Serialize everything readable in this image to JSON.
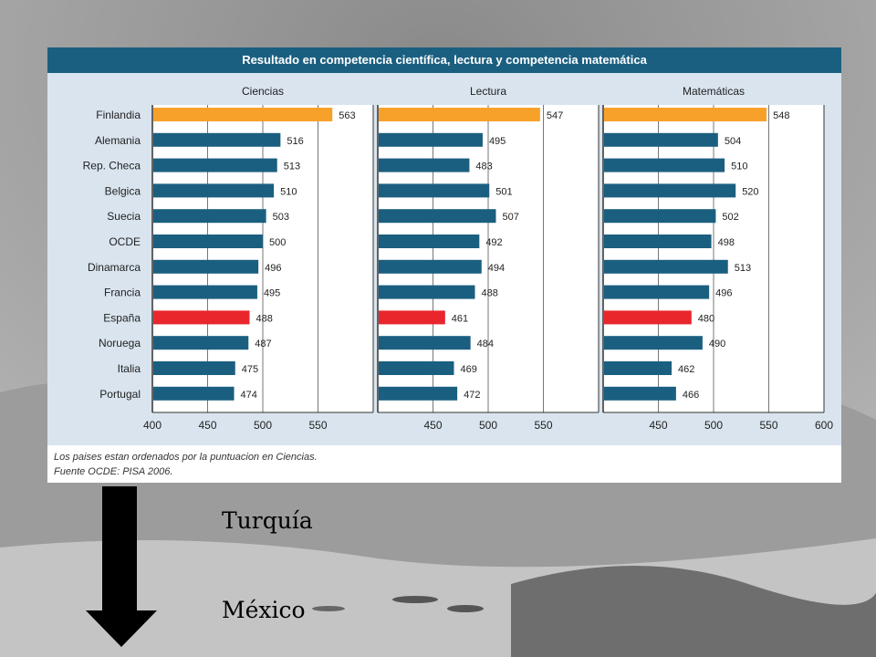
{
  "figure": {
    "title": "Resultado en competencia científica, lectura y competencia matemática",
    "notes": [
      "Los paises estan ordenados por la puntuacion en Ciencias.",
      "Fuente OCDE: PISA 2006."
    ]
  },
  "colors": {
    "default_bar": "#1b5f80",
    "highlight_top": "#f7a12b",
    "highlight_spain": "#e8262c",
    "header": "#1b5f80",
    "panel_bg": "#d9e4ee"
  },
  "chart_data": {
    "type": "bar",
    "orientation": "horizontal",
    "categories": [
      "Finlandia",
      "Alemania",
      "Rep. Checa",
      "Belgica",
      "Suecia",
      "OCDE",
      "Dinamarca",
      "Francia",
      "España",
      "Noruega",
      "Italia",
      "Portugal"
    ],
    "highlight": {
      "Finlandia": "#f7a12b",
      "España": "#e8262c"
    },
    "panels": [
      {
        "name": "Ciencias",
        "values": [
          563,
          516,
          513,
          510,
          503,
          500,
          496,
          495,
          488,
          487,
          475,
          474
        ],
        "xlim": [
          400,
          600
        ],
        "ticks": [
          400,
          450,
          500,
          550
        ]
      },
      {
        "name": "Lectura",
        "values": [
          547,
          495,
          483,
          501,
          507,
          492,
          494,
          488,
          461,
          484,
          469,
          472
        ],
        "xlim": [
          400,
          600
        ],
        "ticks": [
          450,
          500,
          550
        ]
      },
      {
        "name": "Matemáticas",
        "values": [
          548,
          504,
          510,
          520,
          502,
          498,
          513,
          496,
          480,
          490,
          462,
          466
        ],
        "xlim": [
          400,
          600
        ],
        "ticks": [
          450,
          500,
          550,
          600
        ]
      }
    ]
  },
  "captions": {
    "first": "Turquía",
    "second": "México"
  }
}
